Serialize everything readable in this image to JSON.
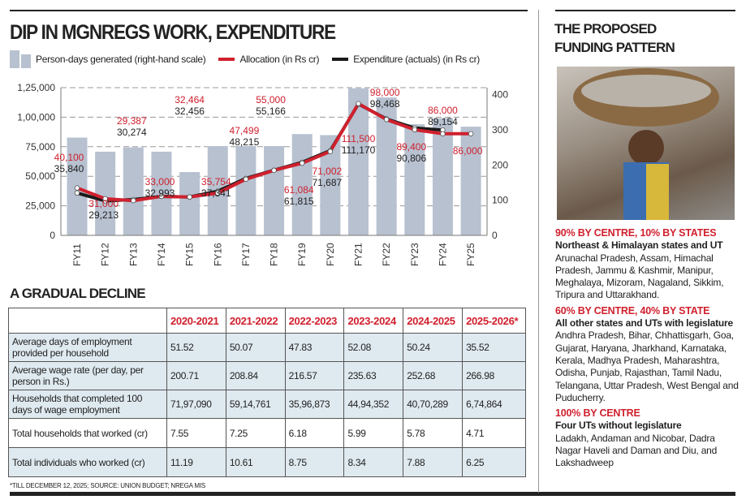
{
  "header": {
    "title": "DIP IN MGNREGS WORK, EXPENDITURE"
  },
  "legend": {
    "bars": "Person-days generated (right-hand scale)",
    "allocation": "Allocation (in Rs cr)",
    "expenditure": "Expenditure (actuals) (in Rs cr)"
  },
  "colors": {
    "bars": "#b7c1d0",
    "allocation": "#d0202e",
    "expenditure": "#1a1a1a",
    "table_shade": "#dfeaf0"
  },
  "chart_data": {
    "type": "bar+line",
    "categories": [
      "FY11",
      "FY12",
      "FY13",
      "FY14",
      "FY15",
      "FY16",
      "FY17",
      "FY18",
      "FY19",
      "FY20",
      "FY21",
      "FY22",
      "FY23",
      "FY24",
      "FY25"
    ],
    "left_axis": {
      "ylim": [
        0,
        125000
      ],
      "ticks": [
        "0",
        "25,000",
        "50,000",
        "75,000",
        "1,00,000",
        "1,25,000"
      ]
    },
    "right_axis": {
      "ylim": [
        0,
        420
      ],
      "ticks": [
        "0",
        "100",
        "200",
        "300",
        "400"
      ]
    },
    "grid": "dashed horizontal",
    "series": [
      {
        "name": "Person-days generated (right-hand scale)",
        "type": "bar",
        "axis": "right",
        "values": [
          278,
          238,
          250,
          238,
          180,
          254,
          254,
          254,
          288,
          285,
          418,
          392,
          316,
          333,
          309
        ]
      },
      {
        "name": "Allocation (in Rs cr)",
        "type": "line",
        "axis": "left",
        "values": [
          40100,
          31000,
          29387,
          33000,
          32464,
          35754,
          47499,
          55000,
          61084,
          71002,
          111500,
          98000,
          89400,
          86000,
          86000
        ],
        "labels": [
          "40,100",
          "31,000",
          "29,387",
          "33,000",
          "32,464",
          "35,754",
          "47,499",
          "55,000",
          "61,084",
          "71,002",
          "111,500",
          "98,000",
          "89,400",
          "86,000",
          "86,000"
        ]
      },
      {
        "name": "Expenditure (actuals) (in Rs cr)",
        "type": "line",
        "axis": "left",
        "values": [
          35840,
          29213,
          30274,
          32993,
          32456,
          37341,
          48215,
          55166,
          61815,
          71687,
          111170,
          98468,
          90806,
          89154,
          null
        ],
        "labels": [
          "35,840",
          "29,213",
          "30,274",
          "32,993",
          "32,456",
          "37,341",
          "48,215",
          "55,166",
          "61,815",
          "71,687",
          "111,170",
          "98,468",
          "90,806",
          "89,154",
          ""
        ]
      }
    ]
  },
  "table": {
    "title": "A GRADUAL DECLINE",
    "columns": [
      "2020-2021",
      "2021-2022",
      "2022-2023",
      "2023-2024",
      "2024-2025",
      "2025-2026*"
    ],
    "rows": [
      {
        "label": "Average days of employment provided per household",
        "values": [
          "51.52",
          "50.07",
          "47.83",
          "52.08",
          "50.24",
          "35.52"
        ]
      },
      {
        "label": "Average wage rate (per day, per person in Rs.)",
        "values": [
          "200.71",
          "208.84",
          "216.57",
          "235.63",
          "252.68",
          "266.98"
        ]
      },
      {
        "label": "Households that completed 100 days of wage employment",
        "values": [
          "71,97,090",
          "59,14,761",
          "35,96,873",
          "44,94,352",
          "40,70,289",
          "6,74,864"
        ]
      },
      {
        "label": "Total households that worked (cr)",
        "values": [
          "7.55",
          "7.25",
          "6.18",
          "5.99",
          "5.78",
          "4.71"
        ]
      },
      {
        "label": "Total individuals who worked (cr)",
        "values": [
          "11.19",
          "10.61",
          "8.75",
          "8.34",
          "7.88",
          "6.25"
        ]
      }
    ],
    "footnote": "*TILL DECEMBER 12, 2025; SOURCE: UNION BUDGET; NREGA MIS"
  },
  "sidebar": {
    "title": "THE PROPOSED FUNDING PATTERN",
    "sections": [
      {
        "heading": "90% BY CENTRE, 10% BY STATES",
        "subheading": "Northeast & Himalayan states and UT",
        "body": "Arunachal Pradesh, Assam, Himachal Pradesh, Jammu & Kashmir, Manipur, Meghalaya, Mizoram, Nagaland, Sikkim, Tripura and Uttarakhand."
      },
      {
        "heading": "60% BY CENTRE, 40% BY STATE",
        "subheading": "All other states and UTs with legislature",
        "body": "Andhra Pradesh, Bihar, Chhattisgarh, Goa, Gujarat, Haryana, Jharkhand, Karnataka, Kerala, Madhya Pradesh, Maharashtra, Odisha, Punjab, Rajasthan, Tamil Nadu, Telangana, Uttar Pradesh, West Bengal and Puducherry."
      },
      {
        "heading": "100% BY CENTRE",
        "subheading": "Four UTs without legislature",
        "body": "Ladakh, Andaman and Nicobar, Dadra Nagar Haveli and Daman and Diu, and Lakshadweep"
      }
    ]
  }
}
